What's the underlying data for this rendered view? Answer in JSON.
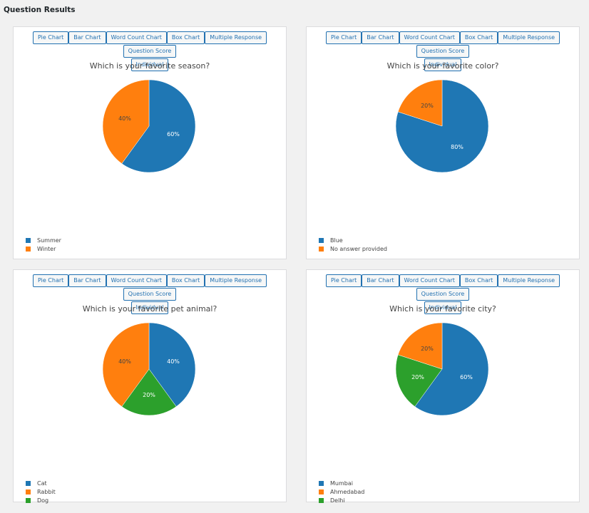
{
  "page": {
    "title": "Question Results"
  },
  "tabs": [
    "Pie Chart",
    "Bar Chart",
    "Word Count Chart",
    "Box Chart",
    "Multiple Response",
    "Question Score",
    "Individual"
  ],
  "colors": {
    "blue": "#1f77b4",
    "orange": "#ff7f0e",
    "green": "#2ca02c"
  },
  "chart_data": [
    {
      "type": "pie",
      "title": "Which is your favorite season?",
      "series": [
        {
          "name": "Summer",
          "value": 60,
          "label": "60%",
          "color": "#1f77b4"
        },
        {
          "name": "Winter",
          "value": 40,
          "label": "40%",
          "color": "#ff7f0e"
        }
      ],
      "legend_position": "bottom-left"
    },
    {
      "type": "pie",
      "title": "Which is your favorite color?",
      "series": [
        {
          "name": "Blue",
          "value": 80,
          "label": "80%",
          "color": "#1f77b4"
        },
        {
          "name": "No answer provided",
          "value": 20,
          "label": "20%",
          "color": "#ff7f0e"
        }
      ],
      "legend_position": "bottom-left"
    },
    {
      "type": "pie",
      "title": "Which is your favorite pet animal?",
      "series": [
        {
          "name": "Cat",
          "value": 40,
          "label": "40%",
          "color": "#1f77b4"
        },
        {
          "name": "Rabbit",
          "value": 40,
          "label": "40%",
          "color": "#ff7f0e"
        },
        {
          "name": "Dog",
          "value": 20,
          "label": "20%",
          "color": "#2ca02c"
        }
      ],
      "pie_order": [
        "Cat",
        "Dog",
        "Rabbit"
      ],
      "legend_position": "bottom-left"
    },
    {
      "type": "pie",
      "title": "Which is your favorite city?",
      "series": [
        {
          "name": "Mumbai",
          "value": 60,
          "label": "60%",
          "color": "#1f77b4"
        },
        {
          "name": "Ahmedabad",
          "value": 20,
          "label": "20%",
          "color": "#ff7f0e"
        },
        {
          "name": "Delhi",
          "value": 20,
          "label": "20%",
          "color": "#2ca02c"
        }
      ],
      "pie_order": [
        "Mumbai",
        "Delhi",
        "Ahmedabad"
      ],
      "legend_position": "bottom-left"
    }
  ]
}
